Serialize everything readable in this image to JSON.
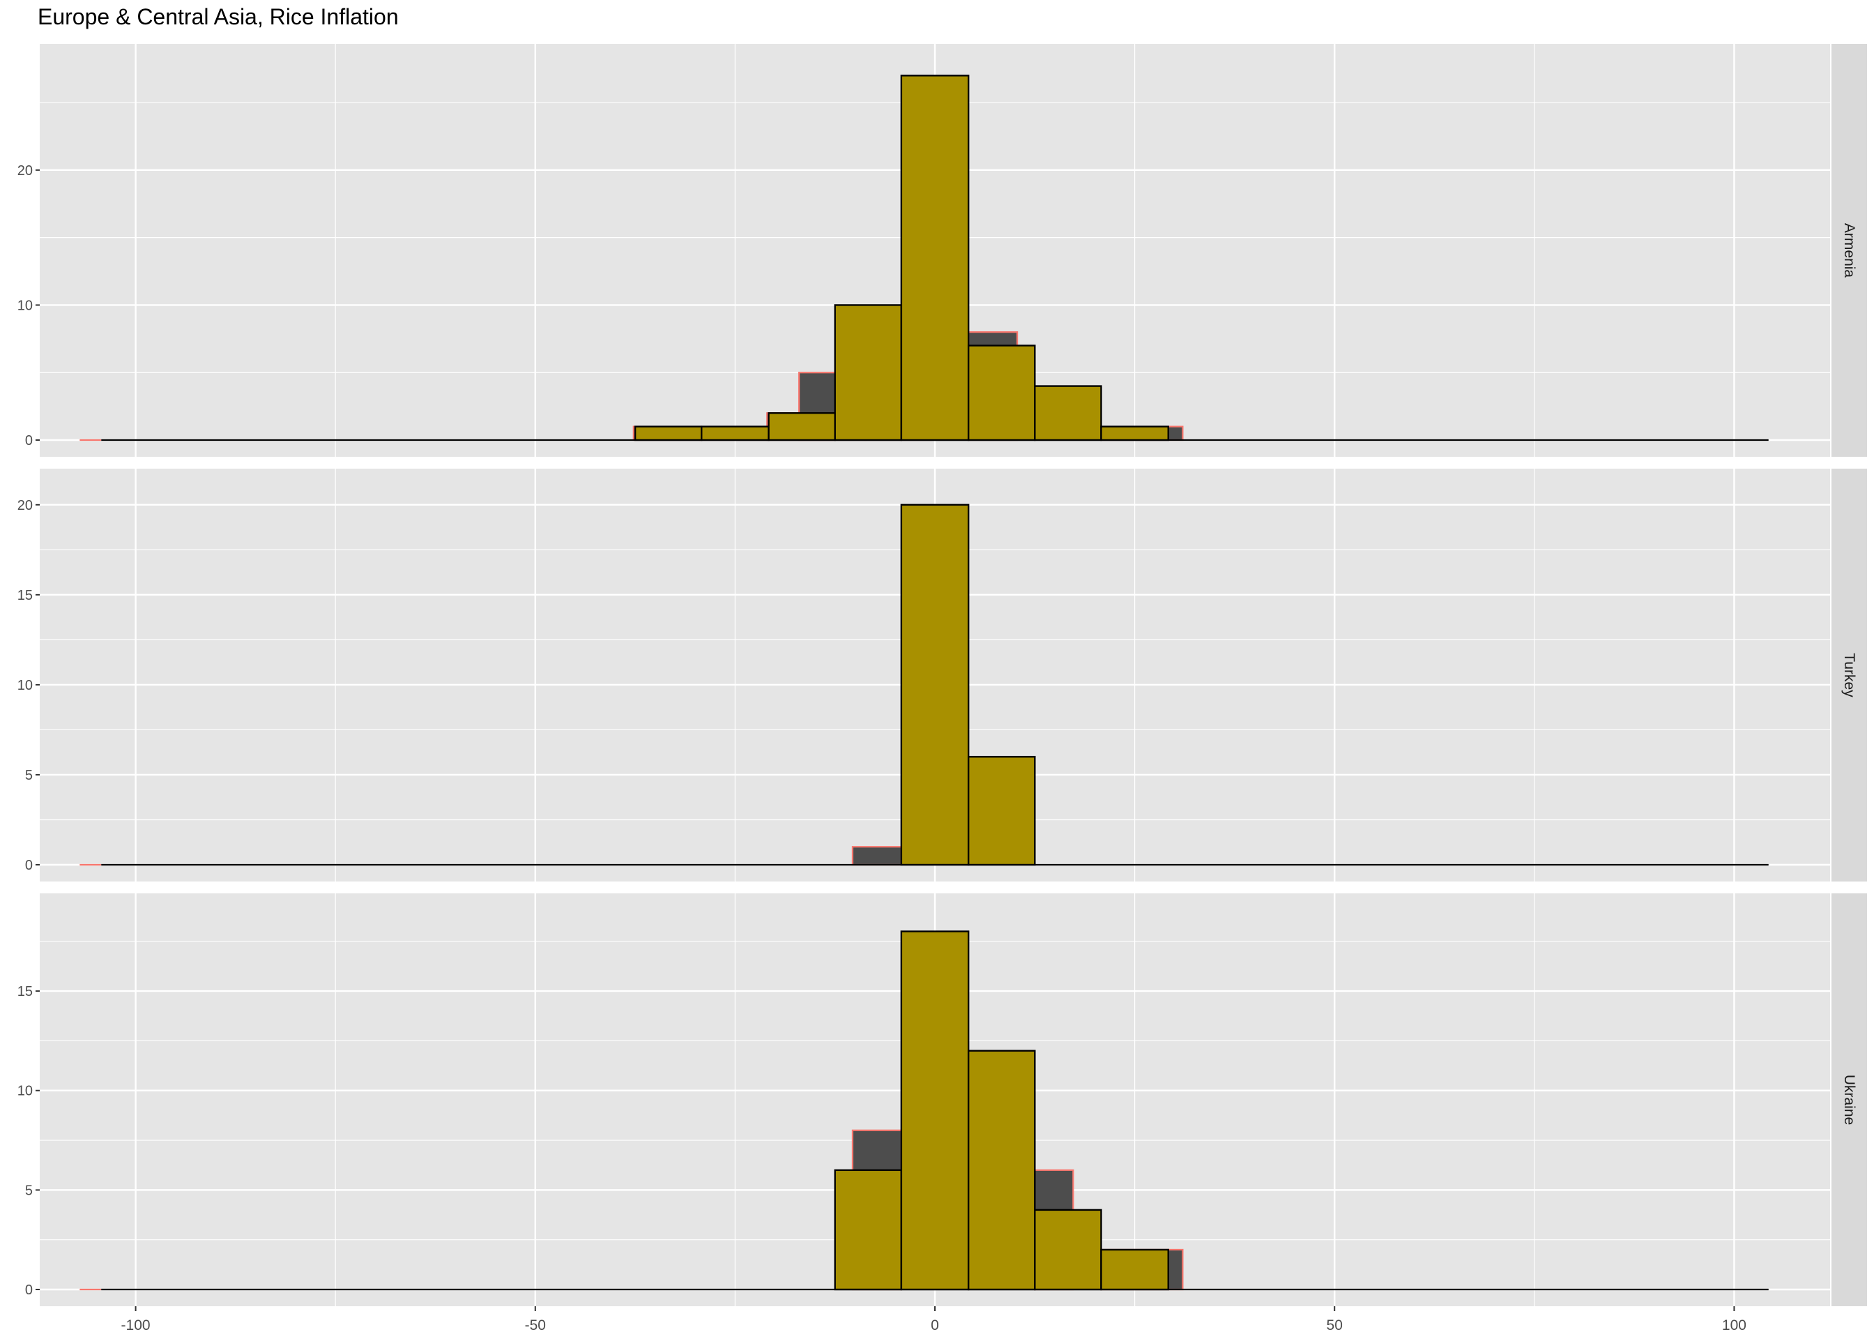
{
  "chart_data": {
    "type": "bar",
    "title": "Europe & Central Asia, Rice Inflation",
    "xlabel": "",
    "ylabel": "",
    "xlim": [
      -112,
      112
    ],
    "x_ticks": [
      -100,
      -50,
      0,
      50,
      100
    ],
    "x_tick_labels": [
      "-100",
      "-50",
      "0",
      "50",
      "100"
    ],
    "grid": true,
    "colors": {
      "panel_bg": "#e5e5e5",
      "strip_bg": "#d9d9d9",
      "front_fill": "#a89000",
      "back_fill": "#4d4d4d",
      "back_outline": "#f8766d",
      "outline": "#000000",
      "gridline": "#ffffff"
    },
    "series_back": {
      "description_free": true,
      "bin_width": 8.33,
      "baseline_range": [
        -107,
        104
      ]
    },
    "panels": [
      {
        "name": "Armenia",
        "ylim": [
          0,
          28
        ],
        "y_ticks": [
          0,
          10,
          20
        ],
        "back_bars": [
          {
            "x0": -37.7,
            "x1": -29.4,
            "count": 1
          },
          {
            "x0": -29.4,
            "x1": -21.0,
            "count": 1
          },
          {
            "x0": -21.0,
            "x1": -12.7,
            "count": 2
          },
          {
            "x0": -17.0,
            "x1": -8.7,
            "count": 5
          },
          {
            "x0": -8.7,
            "x1": -0.4,
            "count": 7
          },
          {
            "x0": 4.2,
            "x1": 10.3,
            "count": 8
          },
          {
            "x0": 21.0,
            "x1": 31.0,
            "count": 1
          }
        ],
        "front_bars": [
          {
            "x0": -37.5,
            "x1": -29.2,
            "count": 1
          },
          {
            "x0": -29.2,
            "x1": -20.8,
            "count": 1
          },
          {
            "x0": -20.8,
            "x1": -12.5,
            "count": 2
          },
          {
            "x0": -12.5,
            "x1": -4.2,
            "count": 10
          },
          {
            "x0": -4.2,
            "x1": 4.2,
            "count": 27
          },
          {
            "x0": 4.2,
            "x1": 12.5,
            "count": 7
          },
          {
            "x0": 12.5,
            "x1": 20.8,
            "count": 4
          },
          {
            "x0": 20.8,
            "x1": 29.2,
            "count": 1
          }
        ]
      },
      {
        "name": "Turkey",
        "ylim": [
          0,
          21
        ],
        "y_ticks": [
          0,
          5,
          10,
          15,
          20
        ],
        "back_bars": [
          {
            "x0": -10.3,
            "x1": -4.2,
            "count": 1
          }
        ],
        "front_bars": [
          {
            "x0": -4.2,
            "x1": 4.2,
            "count": 20
          },
          {
            "x0": 4.2,
            "x1": 12.5,
            "count": 6
          }
        ]
      },
      {
        "name": "Ukraine",
        "ylim": [
          0,
          19
        ],
        "y_ticks": [
          0,
          5,
          10,
          15
        ],
        "back_bars": [
          {
            "x0": -10.3,
            "x1": -4.2,
            "count": 8
          },
          {
            "x0": 12.5,
            "x1": 17.3,
            "count": 6
          },
          {
            "x0": 20.8,
            "x1": 31.0,
            "count": 2
          }
        ],
        "front_bars": [
          {
            "x0": -12.5,
            "x1": -4.2,
            "count": 6
          },
          {
            "x0": -4.2,
            "x1": 4.2,
            "count": 18
          },
          {
            "x0": 4.2,
            "x1": 12.5,
            "count": 12
          },
          {
            "x0": 12.5,
            "x1": 20.8,
            "count": 4
          },
          {
            "x0": 20.8,
            "x1": 29.2,
            "count": 2
          }
        ]
      }
    ]
  }
}
